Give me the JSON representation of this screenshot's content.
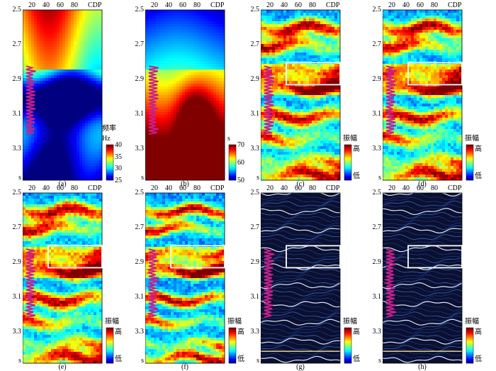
{
  "x_ticks": [
    "20",
    "40",
    "60",
    "80"
  ],
  "x_unit": "CDP",
  "y_ticks": [
    "2.5",
    "2.7",
    "2.9",
    "3.1",
    "3.3"
  ],
  "y_unit": "s",
  "panels": [
    {
      "caption": "(a)",
      "type": "freq",
      "box": false,
      "cb_labels": [
        "频率",
        "Hz"
      ],
      "cb_ticks": [
        "40",
        "35",
        "30",
        "25"
      ]
    },
    {
      "caption": "(b)",
      "type": "time",
      "box": false,
      "cb_labels": [
        "s"
      ],
      "cb_ticks": [
        "70",
        "60",
        "50"
      ]
    },
    {
      "caption": "(c)",
      "type": "amp",
      "box": true,
      "cb_labels": [
        "振幅"
      ],
      "cb_high": "高",
      "cb_low": "低"
    },
    {
      "caption": "(d)",
      "type": "amp",
      "box": true,
      "cb_labels": [
        "振幅"
      ],
      "cb_high": "高",
      "cb_low": "低"
    },
    {
      "caption": "(e)",
      "type": "amp",
      "box": true,
      "cb_labels": [
        "振幅"
      ],
      "cb_high": "高",
      "cb_low": "低"
    },
    {
      "caption": "(f)",
      "type": "amp2",
      "box": true,
      "cb_labels": [
        "振幅"
      ],
      "cb_high": "高",
      "cb_low": "低"
    },
    {
      "caption": "(g)",
      "type": "lines",
      "box": true,
      "cb_labels": [
        "振幅"
      ],
      "cb_high": "高",
      "cb_low": "低"
    },
    {
      "caption": "(h)",
      "type": "lines",
      "box": true,
      "cb_labels": [
        "振幅"
      ],
      "cb_high": "高",
      "cb_low": "低"
    }
  ],
  "colors": {
    "well_log": "#c8208a",
    "box": "#ffffff",
    "jet_low": "#00008f",
    "jet_high": "#800000"
  }
}
